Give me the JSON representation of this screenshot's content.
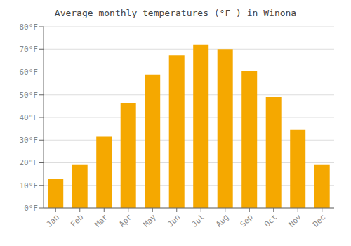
{
  "chart_data": {
    "type": "bar",
    "title": "Average monthly temperatures (°F ) in Winona",
    "categories": [
      "Jan",
      "Feb",
      "Mar",
      "Apr",
      "May",
      "Jun",
      "Jul",
      "Aug",
      "Sep",
      "Oct",
      "Nov",
      "Dec"
    ],
    "values": [
      13,
      19,
      31.5,
      46.5,
      59,
      67.5,
      72,
      70,
      60.5,
      49,
      34.5,
      19
    ],
    "color": "#F5A800",
    "ylim": [
      0,
      80
    ],
    "yticks": [
      {
        "value": 0,
        "label": "0°F"
      },
      {
        "value": 10,
        "label": "10°F"
      },
      {
        "value": 20,
        "label": "20°F"
      },
      {
        "value": 30,
        "label": "30°F"
      },
      {
        "value": 40,
        "label": "40°F"
      },
      {
        "value": 50,
        "label": "50°F"
      },
      {
        "value": 60,
        "label": "60°F"
      },
      {
        "value": 70,
        "label": "70°F"
      },
      {
        "value": 80,
        "label": "80°F"
      }
    ],
    "grid": true
  }
}
